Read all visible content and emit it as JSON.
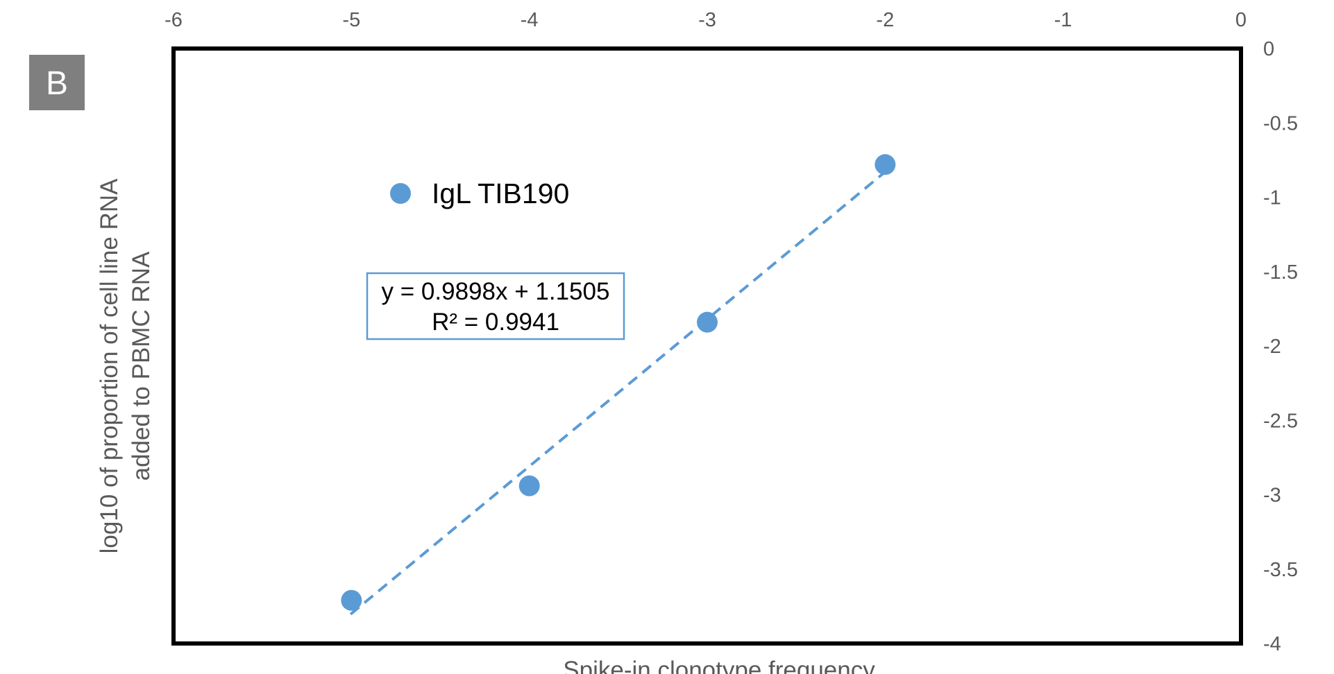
{
  "panel_label": "B",
  "colors": {
    "series": "#5B9BD5",
    "trendline": "#5B9BD5",
    "axis_text": "#595959",
    "frame": "#000000",
    "panel_badge": "#7F7F7F",
    "panel_text": "#FFFFFF"
  },
  "chart_data": {
    "type": "scatter",
    "title": "",
    "xlabel": "Spike-in clonotype frequency",
    "ylabel_lines": [
      "log10 of  proportion of cell line RNA",
      "added to PBMC RNA"
    ],
    "xlim": [
      -6,
      0
    ],
    "ylim": [
      -4,
      0
    ],
    "x_axis_position": "top",
    "y_axis_position": "right",
    "grid": false,
    "legend_placement": "top-left inside plot",
    "x_ticks": [
      "-6",
      "-5",
      "-4",
      "-3",
      "-2",
      "-1",
      "0"
    ],
    "y_ticks": [
      "0",
      "-0.5",
      "-1",
      "-1.5",
      "-2",
      "-2.5",
      "-3",
      "-3.5",
      "-4"
    ],
    "series": [
      {
        "name": "IgL TIB190",
        "points": [
          {
            "x": -5,
            "y": -3.71
          },
          {
            "x": -4,
            "y": -2.94
          },
          {
            "x": -3,
            "y": -1.84
          },
          {
            "x": -2,
            "y": -0.78
          }
        ]
      }
    ],
    "trendline": {
      "type": "linear",
      "slope": 0.9898,
      "intercept": 1.1505,
      "x_range": [
        -5,
        -2
      ],
      "style": "dashed",
      "equation_text": "y = 0.9898x + 1.1505",
      "r2_text": "R² = 0.9941"
    }
  }
}
